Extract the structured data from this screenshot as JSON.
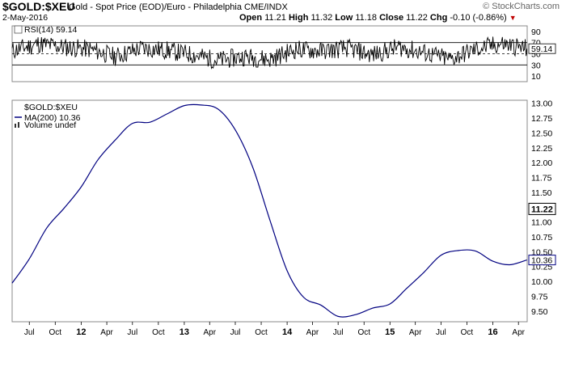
{
  "header": {
    "symbol": "$GOLD:$XEU",
    "description": "Gold - Spot Price (EOD)/Euro - Philadelphia",
    "exchange": "CME/INDX",
    "watermark": "© StockCharts.com",
    "date": "2-May-2016",
    "open_label": "Open",
    "open": "11.21",
    "high_label": "High",
    "high": "11.32",
    "low_label": "Low",
    "low": "11.18",
    "close_label": "Close",
    "close": "11.22",
    "chg_label": "Chg",
    "chg": "-0.10 (-0.86%)",
    "chg_icon": "down-triangle-icon",
    "chg_color": "#c00000"
  },
  "chart_data": [
    {
      "type": "line",
      "panel": "rsi",
      "legend": "RSI(14) 59.14",
      "current_value": "59.14",
      "ylim": [
        0,
        100
      ],
      "y_ticks": [
        "90",
        "70",
        "50",
        "30",
        "10"
      ],
      "reference_lines": [
        30,
        50,
        70
      ],
      "series": [
        {
          "name": "RSI(14)",
          "color": "#000000",
          "summary": "oscillates between approx 20 and 85 throughout the period",
          "x": [
            "2011-05",
            "2011-08",
            "2011-11",
            "2012-02",
            "2012-05",
            "2012-08",
            "2012-11",
            "2013-02",
            "2013-05",
            "2013-08",
            "2013-11",
            "2014-02",
            "2014-05",
            "2014-08",
            "2014-11",
            "2015-02",
            "2015-05",
            "2015-08",
            "2015-11",
            "2016-02",
            "2016-05"
          ],
          "values": [
            55,
            68,
            62,
            58,
            45,
            60,
            56,
            48,
            38,
            45,
            40,
            58,
            55,
            60,
            48,
            62,
            52,
            40,
            58,
            68,
            59
          ]
        }
      ]
    },
    {
      "type": "line",
      "panel": "price",
      "legend": [
        "$GOLD:$XEU",
        "MA(200) 10.36",
        "Volume undef"
      ],
      "ylim": [
        9.32,
        13.05
      ],
      "y_ticks": [
        "13.00",
        "12.75",
        "12.50",
        "12.25",
        "12.00",
        "11.75",
        "11.50",
        "11.25",
        "11.00",
        "10.75",
        "10.50",
        "10.25",
        "10.00",
        "9.75",
        "9.50"
      ],
      "price_label": "11.22",
      "ma_label": "10.36",
      "x_ticks": [
        "Jul",
        "Oct",
        "12",
        "Apr",
        "Jul",
        "Oct",
        "13",
        "Apr",
        "Jul",
        "Oct",
        "14",
        "Apr",
        "Jul",
        "Oct",
        "15",
        "Apr",
        "Jul",
        "Oct",
        "16",
        "Apr"
      ],
      "bold_ticks": [
        "12",
        "13",
        "14",
        "15",
        "16"
      ],
      "series": [
        {
          "name": "MA(200)",
          "color": "#000080",
          "x": [
            "2011-05",
            "2011-07",
            "2011-09",
            "2011-11",
            "2012-01",
            "2012-03",
            "2012-05",
            "2012-07",
            "2012-09",
            "2012-11",
            "2013-01",
            "2013-03",
            "2013-05",
            "2013-07",
            "2013-09",
            "2013-11",
            "2014-01",
            "2014-03",
            "2014-05",
            "2014-07",
            "2014-09",
            "2014-11",
            "2015-01",
            "2015-03",
            "2015-05",
            "2015-07",
            "2015-09",
            "2015-11",
            "2016-01",
            "2016-03",
            "2016-05"
          ],
          "values": [
            9.97,
            10.38,
            10.9,
            11.23,
            11.59,
            12.05,
            12.38,
            12.66,
            12.68,
            12.82,
            12.96,
            12.97,
            12.9,
            12.55,
            11.92,
            11.03,
            10.18,
            9.73,
            9.6,
            9.41,
            9.44,
            9.55,
            9.62,
            9.88,
            10.15,
            10.44,
            10.52,
            10.51,
            10.34,
            10.28,
            10.36
          ]
        }
      ]
    }
  ]
}
